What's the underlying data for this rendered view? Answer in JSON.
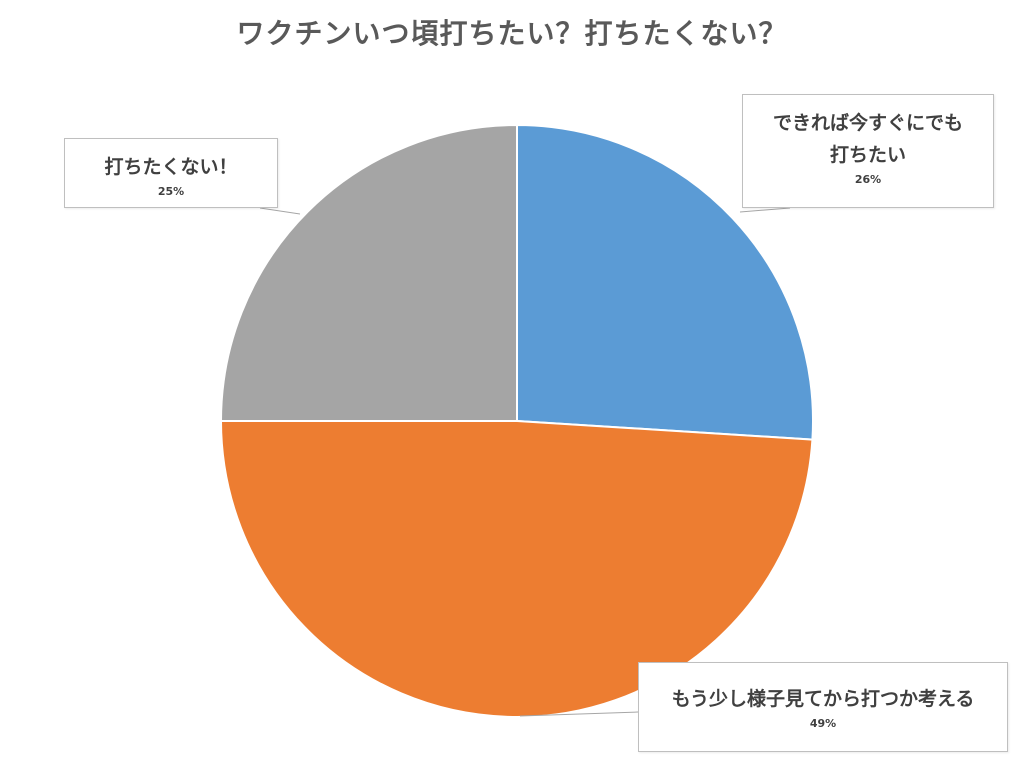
{
  "chart_data": {
    "type": "pie",
    "title": "ワクチンいつ頃打ちたい？打ちたくない？",
    "categories": [
      "できれば今すぐにでも打ちたい",
      "もう少し様子見てから打つか考える",
      "打ちたくない！"
    ],
    "category_lines": [
      [
        "できれば今すぐにでも",
        "打ちたい"
      ],
      [
        "もう少し様子見てから打つか考える"
      ],
      [
        "打ちたくない！"
      ]
    ],
    "values": [
      26,
      49,
      25
    ],
    "value_labels": [
      "26%",
      "49%",
      "25%"
    ],
    "colors": [
      "#5B9BD5",
      "#ED7D31",
      "#A5A5A5"
    ],
    "start_angle": "top, clockwise",
    "legend": "none"
  }
}
